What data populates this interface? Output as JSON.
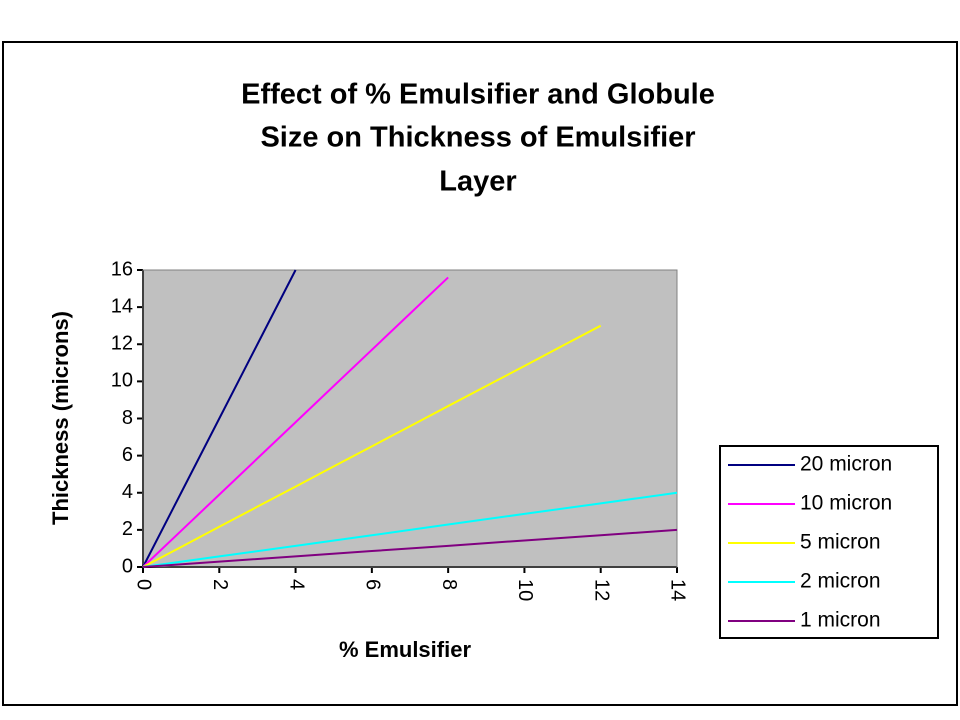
{
  "chart_data": {
    "type": "line",
    "title": [
      "Effect of % Emulsifier and Globule",
      "Size on Thickness of Emulsifier",
      "Layer"
    ],
    "x_label": "% Emulsifier",
    "y_label": "Thickness (microns)",
    "xlim": [
      0,
      14
    ],
    "xticks": [
      0,
      2,
      4,
      6,
      8,
      10,
      12,
      14
    ],
    "ylim": [
      0,
      16
    ],
    "yticks": [
      0,
      2,
      4,
      6,
      8,
      10,
      12,
      14,
      16
    ],
    "grid": false,
    "legend": "right",
    "series": [
      {
        "name": "20 micron",
        "color": "#000080",
        "x": [
          0,
          1,
          2,
          3,
          4
        ],
        "values": [
          0,
          4,
          8,
          12,
          16
        ]
      },
      {
        "name": "10 micron",
        "color": "#ff00ff",
        "x": [
          0,
          1,
          2,
          3,
          4,
          5,
          6,
          7,
          8
        ],
        "values": [
          0,
          1.95,
          3.9,
          5.85,
          7.8,
          9.75,
          11.7,
          13.65,
          15.6
        ]
      },
      {
        "name": "5 micron",
        "color": "#ffff00",
        "x": [
          0,
          1,
          2,
          3,
          4,
          5,
          6,
          7,
          8,
          9,
          10,
          11,
          12
        ],
        "values": [
          0,
          1.08,
          2.17,
          3.25,
          4.33,
          5.42,
          6.5,
          7.58,
          8.67,
          9.75,
          10.83,
          11.92,
          13
        ]
      },
      {
        "name": "2 micron",
        "color": "#00ffff",
        "x": [
          0,
          2,
          4,
          6,
          8,
          10,
          12,
          14
        ],
        "values": [
          0,
          0.57,
          1.14,
          1.71,
          2.29,
          2.86,
          3.43,
          4
        ]
      },
      {
        "name": "1 micron",
        "color": "#800080",
        "x": [
          0,
          2,
          4,
          6,
          8,
          10,
          12,
          14
        ],
        "values": [
          0,
          0.29,
          0.57,
          0.86,
          1.14,
          1.43,
          1.71,
          2
        ]
      }
    ]
  }
}
